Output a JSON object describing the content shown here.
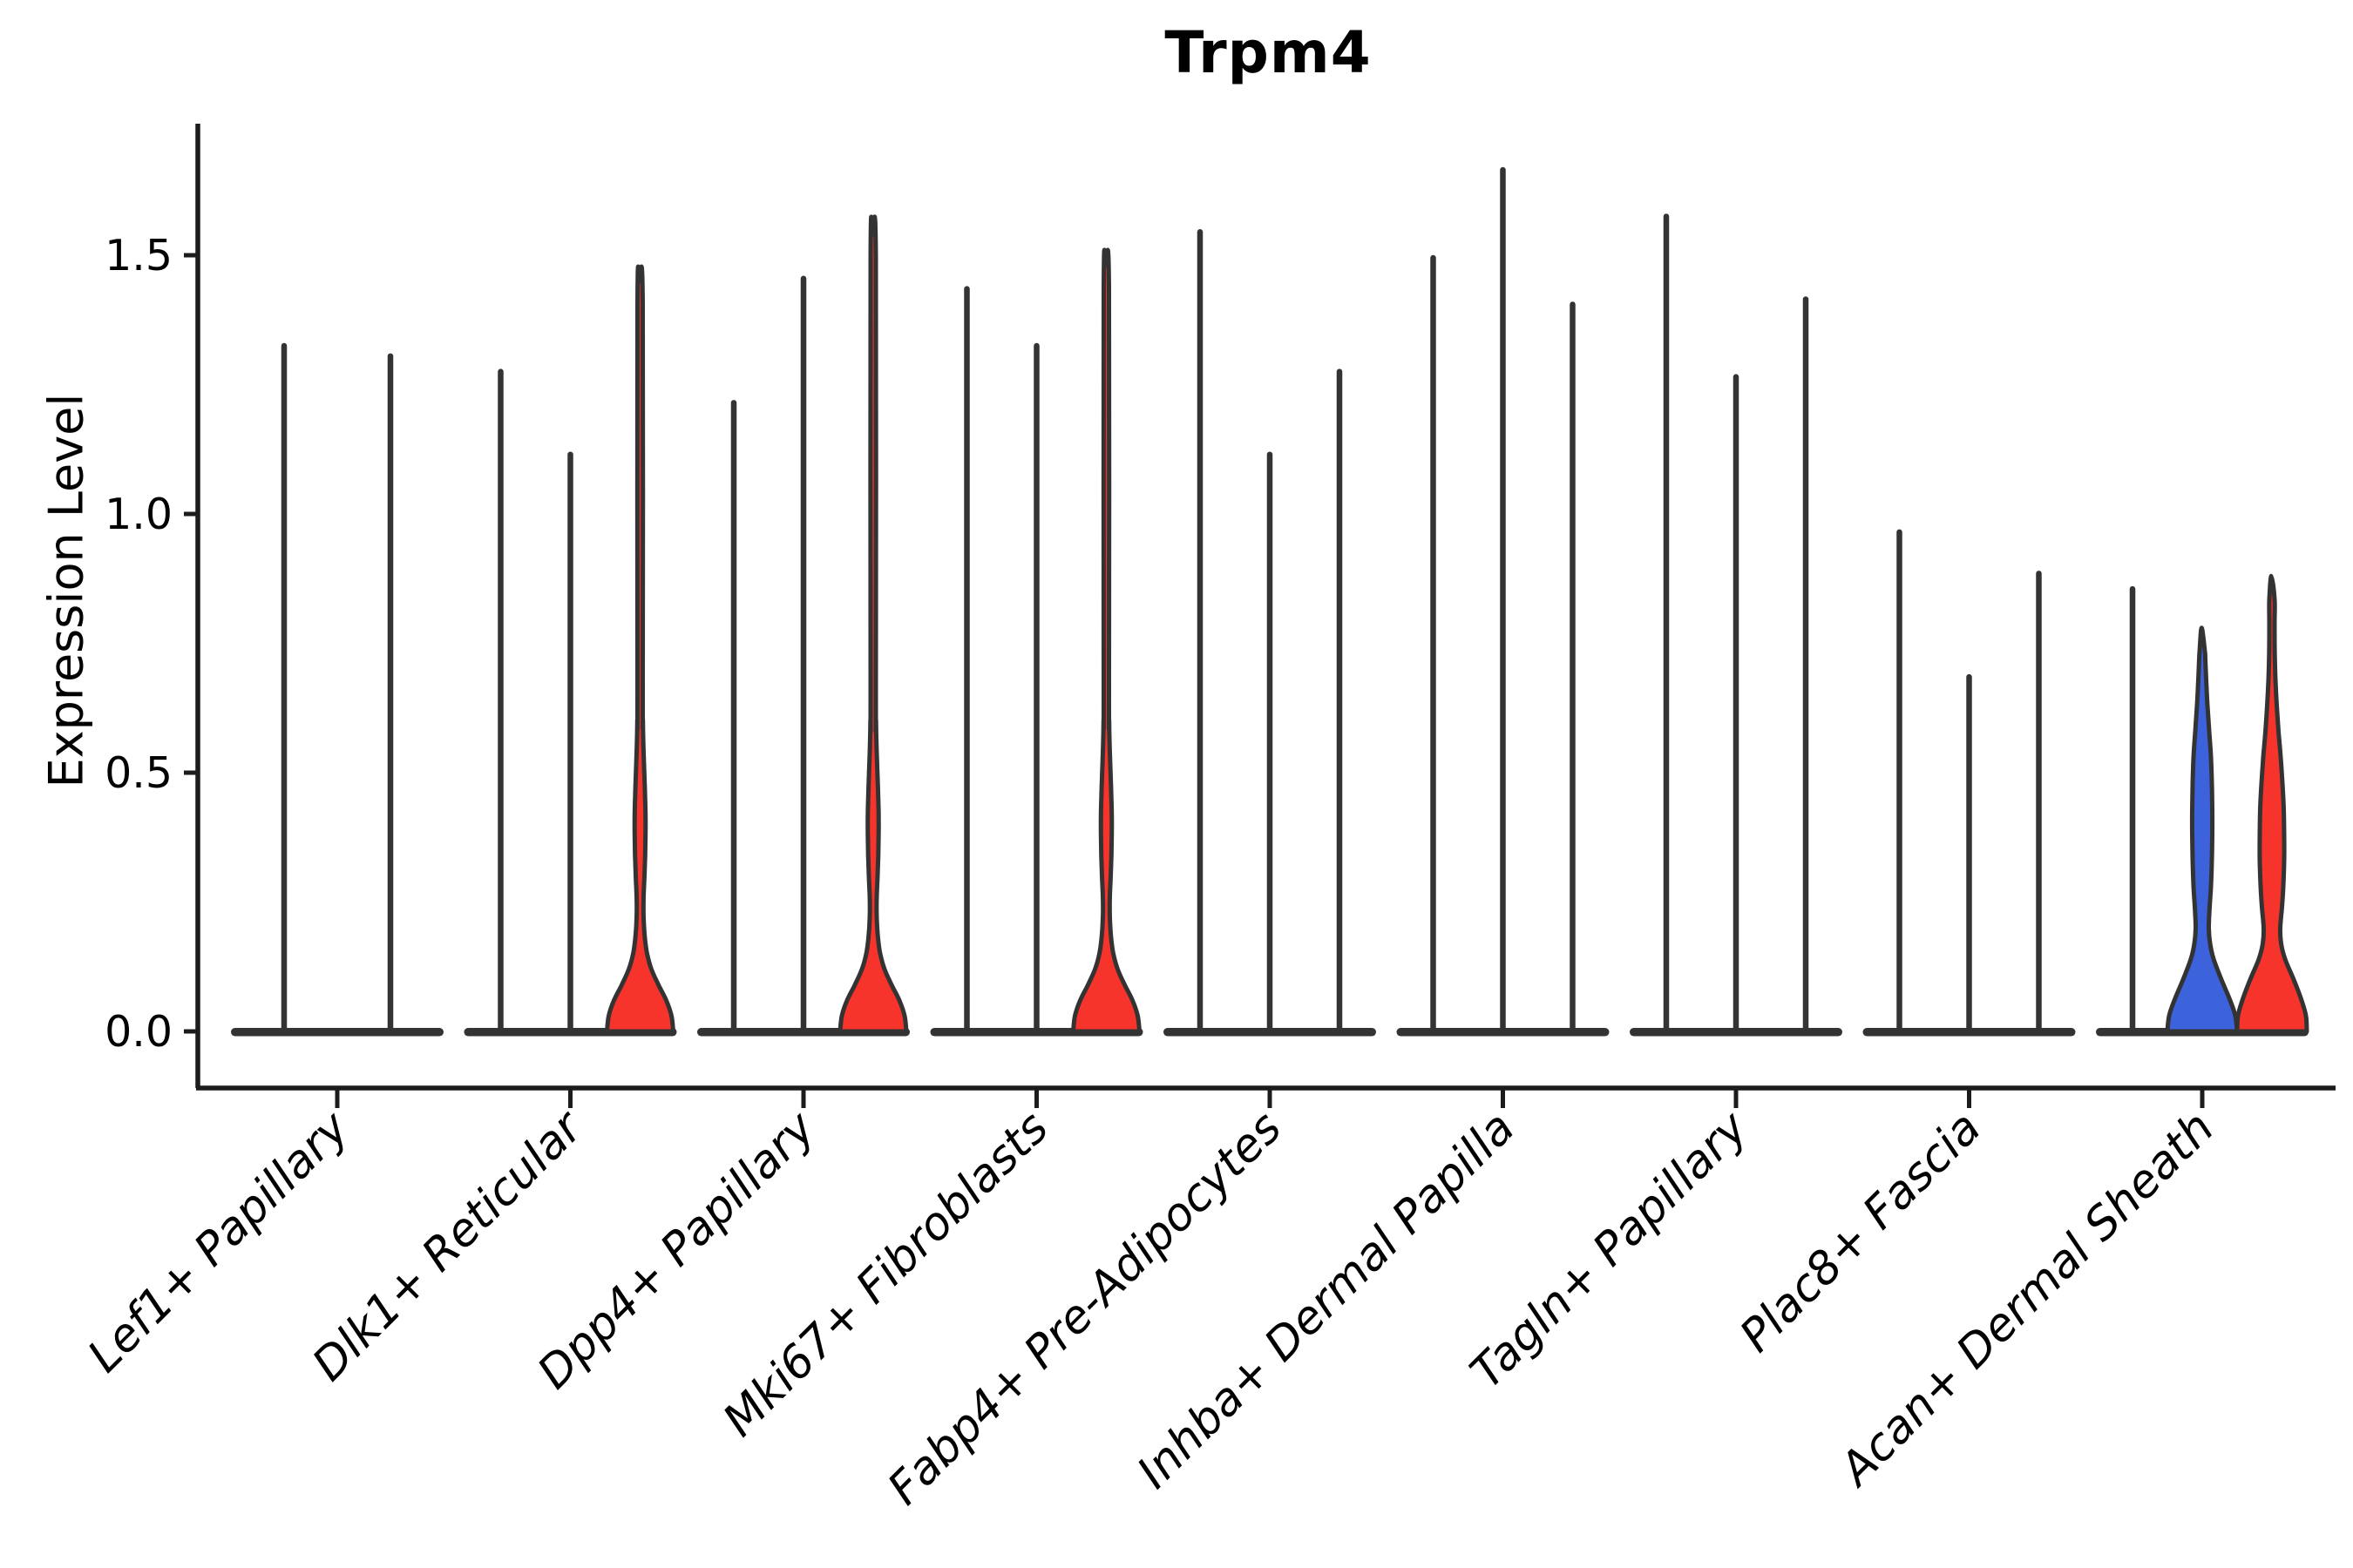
{
  "title": "Trpm4",
  "y_axis": {
    "label": "Expression Level",
    "tick_labels": [
      "0.0",
      "0.5",
      "1.0",
      "1.5"
    ],
    "tick_values": [
      0.0,
      0.5,
      1.0,
      1.5
    ]
  },
  "chart_data": {
    "type": "violin",
    "title": "Trpm4",
    "xlabel": "",
    "ylabel": "Expression Level",
    "ylim": [
      -0.07,
      1.76
    ],
    "grid": false,
    "legend": "none",
    "colors": {
      "outline": "#333333",
      "spike": "#333333",
      "red": "#f7342b",
      "blue": "#3c63dc",
      "axis": "#1c1c1c",
      "text": "#000000"
    },
    "note": "Each category shows per-sample violins; most densities collapse to a spike at 0 with a flat base. Filled violins indicate samples with appreciable non-zero expression.",
    "groups": [
      {
        "category": "Lef1+ Papillary",
        "violins": [
          {
            "style": "spike",
            "color": "spike",
            "max": 1.33
          },
          {
            "style": "spike",
            "color": "spike",
            "max": 1.31
          }
        ]
      },
      {
        "category": "Dlk1+ Reticular",
        "violins": [
          {
            "style": "spike",
            "color": "spike",
            "max": 1.28
          },
          {
            "style": "spike",
            "color": "spike",
            "max": 1.12
          },
          {
            "style": "red_small",
            "color": "red",
            "max": 1.45
          }
        ]
      },
      {
        "category": "Dpp4+ Papillary",
        "violins": [
          {
            "style": "spike",
            "color": "spike",
            "max": 1.22
          },
          {
            "style": "spike",
            "color": "spike",
            "max": 1.46
          },
          {
            "style": "red_small",
            "color": "red",
            "max": 1.54
          }
        ]
      },
      {
        "category": "Mki67+ Fibroblasts",
        "violins": [
          {
            "style": "spike",
            "color": "spike",
            "max": 1.44
          },
          {
            "style": "spike",
            "color": "spike",
            "max": 1.33
          },
          {
            "style": "red_small",
            "color": "red",
            "max": 1.48
          }
        ]
      },
      {
        "category": "Fabp4+ Pre-Adipocytes",
        "violins": [
          {
            "style": "spike",
            "color": "spike",
            "max": 1.55
          },
          {
            "style": "spike",
            "color": "spike",
            "max": 1.12
          },
          {
            "style": "spike",
            "color": "spike",
            "max": 1.28
          }
        ]
      },
      {
        "category": "Inhba+ Dermal Papilla",
        "violins": [
          {
            "style": "spike",
            "color": "spike",
            "max": 1.5
          },
          {
            "style": "spike",
            "color": "spike",
            "max": 1.67
          },
          {
            "style": "spike",
            "color": "spike",
            "max": 1.41
          }
        ]
      },
      {
        "category": "Tagln+ Papillary",
        "violins": [
          {
            "style": "spike",
            "color": "spike",
            "max": 1.58
          },
          {
            "style": "spike",
            "color": "spike",
            "max": 1.27
          },
          {
            "style": "spike",
            "color": "spike",
            "max": 1.42
          }
        ]
      },
      {
        "category": "Plac8+ Fascia",
        "violins": [
          {
            "style": "spike",
            "color": "spike",
            "max": 0.97
          },
          {
            "style": "spike",
            "color": "spike",
            "max": 0.69
          },
          {
            "style": "spike",
            "color": "spike",
            "max": 0.89
          }
        ]
      },
      {
        "category": "Acan+ Dermal Sheath",
        "violins": [
          {
            "style": "spike",
            "color": "spike",
            "max": 0.86
          },
          {
            "style": "blue_big",
            "color": "blue",
            "max": 0.78
          },
          {
            "style": "red_big",
            "color": "red",
            "max": 0.88
          }
        ]
      }
    ],
    "profiles": {
      "red_small": [
        [
          0,
          38
        ],
        [
          0.03,
          36
        ],
        [
          0.06,
          30
        ],
        [
          0.09,
          21
        ],
        [
          0.12,
          13
        ],
        [
          0.15,
          8
        ],
        [
          0.18,
          5.5
        ],
        [
          0.22,
          4
        ],
        [
          0.26,
          4
        ],
        [
          0.3,
          5
        ],
        [
          0.34,
          5.8
        ],
        [
          0.38,
          6.2
        ],
        [
          0.42,
          6.2
        ],
        [
          0.46,
          5.6
        ],
        [
          0.5,
          4.8
        ],
        [
          0.55,
          3.8
        ],
        [
          0.6,
          3.2
        ],
        [
          0.66,
          3
        ]
      ],
      "blue_big": [
        [
          0,
          40
        ],
        [
          0.03,
          38
        ],
        [
          0.06,
          32
        ],
        [
          0.1,
          22
        ],
        [
          0.14,
          13
        ],
        [
          0.17,
          9
        ],
        [
          0.2,
          7.5
        ],
        [
          0.24,
          8.5
        ],
        [
          0.28,
          10
        ],
        [
          0.33,
          11
        ],
        [
          0.38,
          11.5
        ],
        [
          0.43,
          11.5
        ],
        [
          0.48,
          11
        ],
        [
          0.53,
          10
        ],
        [
          0.58,
          8
        ],
        [
          0.63,
          6
        ],
        [
          0.68,
          4.5
        ],
        [
          0.72,
          3.5
        ]
      ],
      "red_big": [
        [
          0,
          40
        ],
        [
          0.03,
          39
        ],
        [
          0.06,
          34
        ],
        [
          0.1,
          25
        ],
        [
          0.14,
          15
        ],
        [
          0.17,
          10.5
        ],
        [
          0.2,
          9.5
        ],
        [
          0.24,
          11.5
        ],
        [
          0.28,
          13
        ],
        [
          0.33,
          14
        ],
        [
          0.38,
          14
        ],
        [
          0.43,
          13.5
        ],
        [
          0.48,
          12
        ],
        [
          0.53,
          10
        ],
        [
          0.58,
          7.5
        ],
        [
          0.63,
          5.5
        ],
        [
          0.68,
          4
        ],
        [
          0.73,
          3.2
        ],
        [
          0.79,
          3
        ]
      ]
    }
  }
}
